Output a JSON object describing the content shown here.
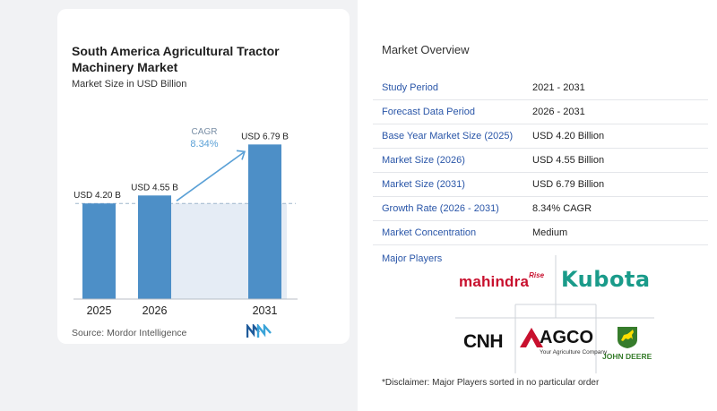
{
  "chart_data": {
    "type": "bar",
    "title": "South America Agricultural Tractor Machinery Market",
    "subtitle": "Market Size in USD Billion",
    "categories": [
      "2025",
      "2026",
      "2031"
    ],
    "values": [
      4.2,
      4.55,
      6.79
    ],
    "value_labels": [
      "USD 4.20 B",
      "USD 4.55 B",
      "USD 6.79 B"
    ],
    "cagr_label": "CAGR",
    "cagr_value": "8.34%",
    "colors": {
      "bar": "#4d8fc7",
      "projection_fill": "#dce6f1",
      "arrow": "#5aa0d6",
      "cagr_text": "#5aa0d6"
    },
    "grid": false
  },
  "source_text": "Source:  Mordor Intelligence",
  "overview": {
    "title": "Market Overview",
    "rows": [
      {
        "label": "Study Period",
        "value": "2021 - 2031"
      },
      {
        "label": "Forecast Data Period",
        "value": "2026 - 2031"
      },
      {
        "label": "Base Year Market Size (2025)",
        "value": "USD 4.20 Billion"
      },
      {
        "label": "Market Size (2026)",
        "value": "USD 4.55 Billion"
      },
      {
        "label": "Market Size (2031)",
        "value": "USD 6.79 Billion"
      },
      {
        "label": "Growth Rate (2026 - 2031)",
        "value": "8.34% CAGR"
      },
      {
        "label": "Market Concentration",
        "value": "Medium"
      }
    ]
  },
  "players": {
    "title": "Major Players",
    "logos": {
      "mahindra": {
        "text": "mahindra",
        "sup": "Rise"
      },
      "kubota": {
        "text": "Kubota"
      },
      "cnh": {
        "text": "CNH"
      },
      "agco": {
        "text": "AGCO",
        "tagline": "Your Agriculture Company"
      },
      "john_deere": {
        "text": "JOHN DEERE"
      }
    }
  },
  "disclaimer": "*Disclaimer: Major Players sorted in no particular order"
}
